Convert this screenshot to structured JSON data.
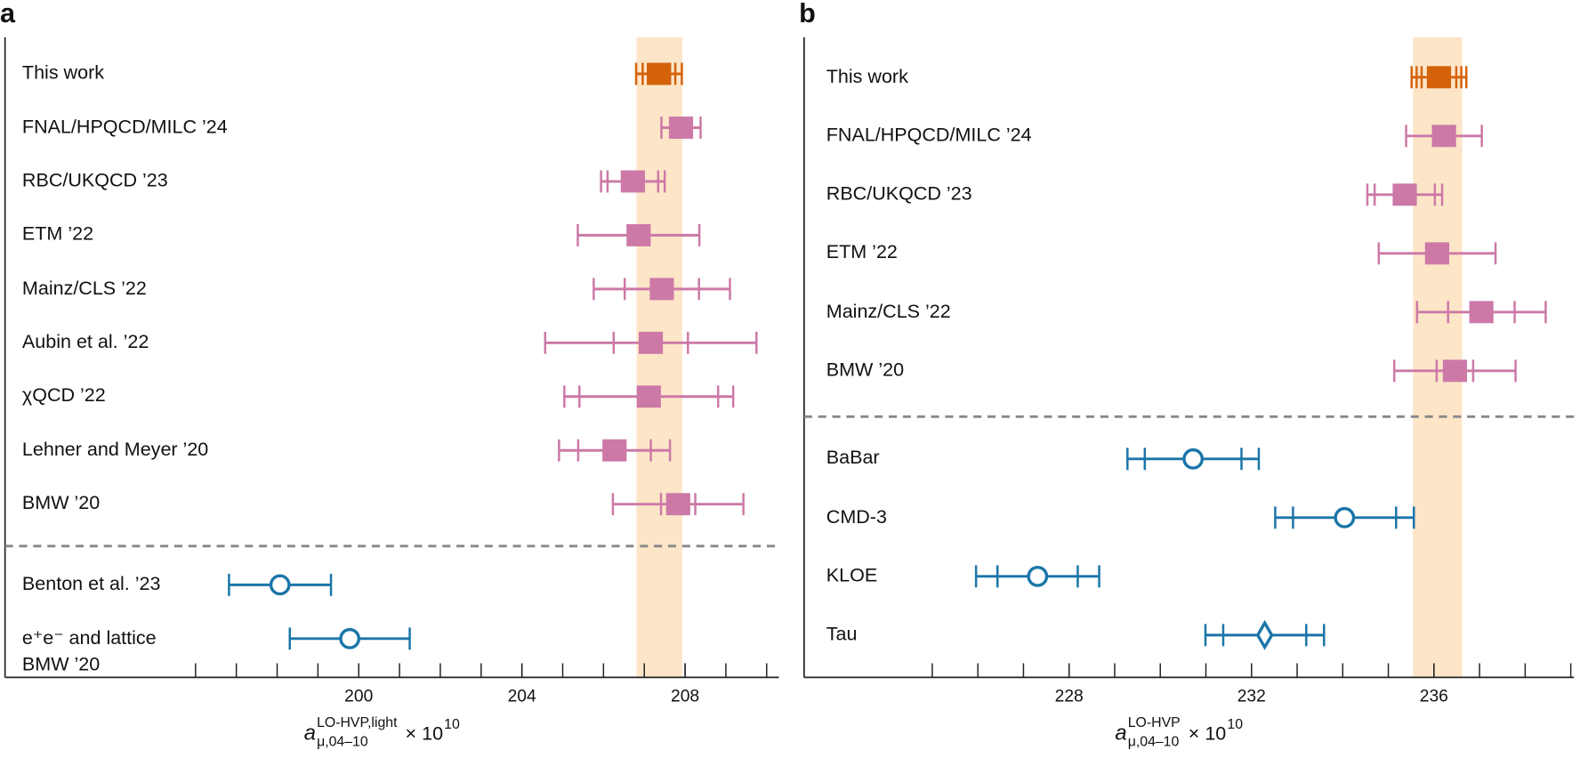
{
  "chart_data": [
    {
      "type": "forest",
      "panel": "a",
      "categories": [
        "This work",
        "FNAL/HPQCD/MILC ’24",
        "RBC/UKQCD ’23",
        "ETM ’22",
        "Mainz/CLS ’22",
        "Aubin et al. ’22",
        "χQCD ’22",
        "Lehner and Meyer ’20",
        "BMW ’20",
        "Benton et al. ’23",
        "e⁺e⁻ and lattice\nBMW ’20"
      ],
      "values": [
        207.36,
        207.9,
        206.72,
        206.86,
        207.43,
        207.16,
        207.11,
        206.27,
        207.83,
        198.07,
        199.78
      ],
      "errors": [
        [
          0.27,
          0.4,
          0.56
        ],
        [
          0.48
        ],
        [
          0.62,
          0.78
        ],
        [
          1.49
        ],
        [
          0.91,
          1.67
        ],
        [
          0.91,
          2.59
        ],
        [
          1.7,
          2.07
        ],
        [
          0.89,
          1.36
        ],
        [
          0.42,
          1.6
        ],
        [
          1.25
        ],
        [
          1.47
        ]
      ],
      "markers": [
        "square",
        "square",
        "square",
        "square",
        "square",
        "square",
        "square",
        "square",
        "square",
        "circle",
        "circle"
      ],
      "colors": [
        "#d4620b",
        "#cc79a7",
        "#cc79a7",
        "#cc79a7",
        "#cc79a7",
        "#cc79a7",
        "#cc79a7",
        "#cc79a7",
        "#cc79a7",
        "#1a75a8",
        "#1a75a8"
      ],
      "band": [
        206.81,
        207.93
      ],
      "band_color": "#fde5c8",
      "xlim": [
        191.33,
        210.3
      ],
      "xticks": [
        200,
        204,
        208
      ],
      "xminor": [
        196,
        197,
        198,
        199,
        200,
        201,
        202,
        203,
        204,
        205,
        206,
        207,
        208,
        209,
        210
      ],
      "xlabel": {
        "symbol": "a",
        "sub": "μ,04–10",
        "sup": "LO-HVP,light",
        "factor": "× 10",
        "factor_exp": "10"
      }
    },
    {
      "type": "forest",
      "panel": "b",
      "categories": [
        "This work",
        "FNAL/HPQCD/MILC ’24",
        "RBC/UKQCD ’23",
        "ETM ’22",
        "Mainz/CLS ’22",
        "BMW ’20",
        "BaBar",
        "CMD-3",
        "KLOE",
        "Tau"
      ],
      "values": [
        236.11,
        236.22,
        235.36,
        236.07,
        237.04,
        236.46,
        230.72,
        234.04,
        227.31,
        232.29
      ],
      "errors": [
        [
          0.38,
          0.49,
          0.6
        ],
        [
          0.83
        ],
        [
          0.66,
          0.82
        ],
        [
          1.28
        ],
        [
          0.73,
          1.41
        ],
        [
          0.4,
          1.33
        ],
        [
          1.06,
          1.44
        ],
        [
          1.13,
          1.52
        ],
        [
          0.88,
          1.35
        ],
        [
          0.91,
          1.3
        ]
      ],
      "markers": [
        "square",
        "square",
        "square",
        "square",
        "square",
        "square",
        "circle",
        "circle",
        "circle",
        "diamond"
      ],
      "colors": [
        "#d4620b",
        "#cc79a7",
        "#cc79a7",
        "#cc79a7",
        "#cc79a7",
        "#cc79a7",
        "#1a75a8",
        "#1a75a8",
        "#1a75a8",
        "#1a75a8"
      ],
      "band": [
        235.54,
        236.62
      ],
      "band_color": "#fde5c8",
      "xlim": [
        222.19,
        239.07
      ],
      "xticks": [
        228,
        232,
        236
      ],
      "xminor": [
        225,
        226,
        227,
        228,
        229,
        230,
        231,
        232,
        233,
        234,
        235,
        236,
        237,
        238,
        239
      ],
      "xlabel": {
        "symbol": "a",
        "sub": "μ,04–10",
        "sup": "LO-HVP",
        "factor": "× 10",
        "factor_exp": "10"
      }
    }
  ]
}
